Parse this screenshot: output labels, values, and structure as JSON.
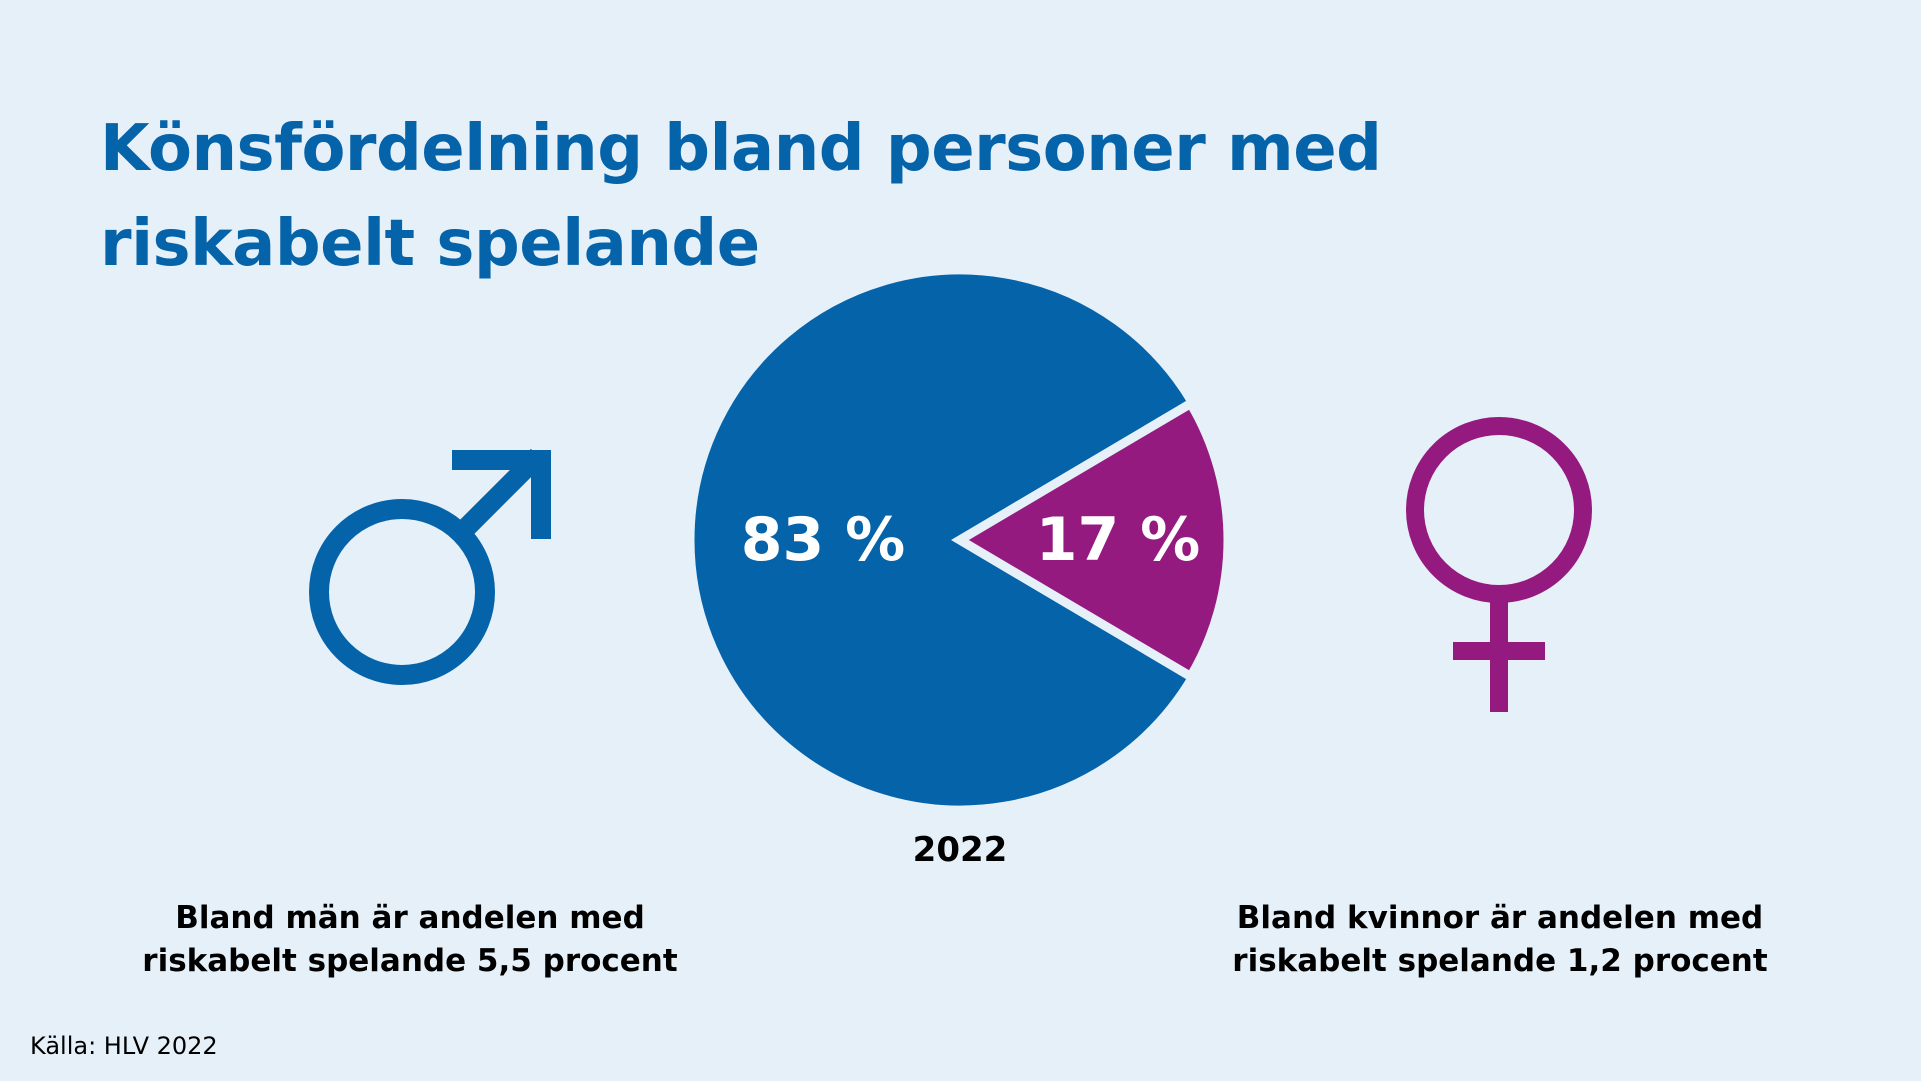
{
  "title": "Könsfördelning bland personer med riskabelt spelande",
  "chart_data": {
    "type": "pie",
    "title": "Könsfördelning bland personer med riskabelt spelande",
    "categories": [
      "Män",
      "Kvinnor"
    ],
    "values": [
      83,
      17
    ],
    "labels": [
      "83 %",
      "17 %"
    ],
    "colors": [
      "#0563aa",
      "#951a80"
    ],
    "xlabel": "2022"
  },
  "captions": {
    "men": "Bland män är andelen med riskabelt spelande 5,5 procent",
    "women": "Bland kvinnor är andelen med riskabelt spelande 1,2 procent"
  },
  "icons": {
    "men": "male-symbol-icon",
    "women": "female-symbol-icon"
  },
  "source": "Källa: HLV 2022"
}
